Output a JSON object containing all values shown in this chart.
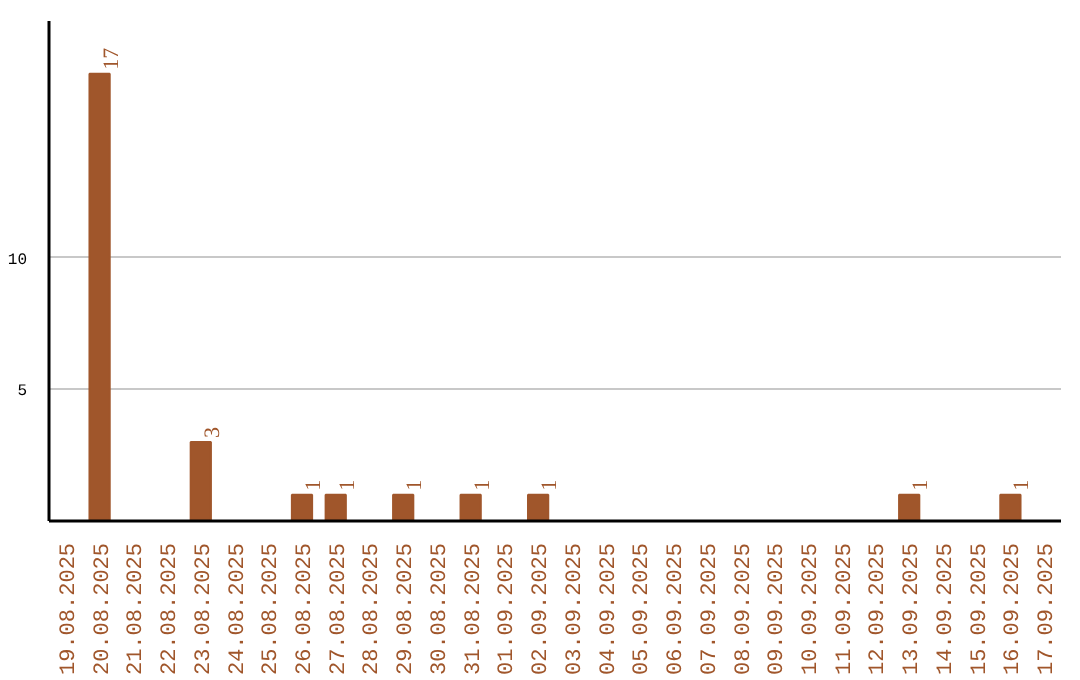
{
  "chart_data": {
    "type": "bar",
    "categories": [
      "19.08.2025",
      "20.08.2025",
      "21.08.2025",
      "22.08.2025",
      "23.08.2025",
      "24.08.2025",
      "25.08.2025",
      "26.08.2025",
      "27.08.2025",
      "28.08.2025",
      "29.08.2025",
      "30.08.2025",
      "31.08.2025",
      "01.09.2025",
      "02.09.2025",
      "03.09.2025",
      "04.09.2025",
      "05.09.2025",
      "06.09.2025",
      "07.09.2025",
      "08.09.2025",
      "09.09.2025",
      "10.09.2025",
      "11.09.2025",
      "12.09.2025",
      "13.09.2025",
      "14.09.2025",
      "15.09.2025",
      "16.09.2025",
      "17.09.2025"
    ],
    "values": [
      0,
      17,
      0,
      0,
      3,
      0,
      0,
      1,
      1,
      0,
      1,
      0,
      1,
      0,
      1,
      0,
      0,
      0,
      0,
      0,
      0,
      0,
      0,
      0,
      0,
      1,
      0,
      0,
      1,
      0
    ],
    "value_labels": [
      null,
      "17",
      null,
      null,
      "3",
      null,
      null,
      "1",
      "1",
      null,
      "1",
      null,
      "1",
      null,
      "1",
      null,
      null,
      null,
      null,
      null,
      null,
      null,
      null,
      null,
      null,
      "1",
      null,
      null,
      "1",
      null
    ],
    "color": "#a0562b",
    "ylim": [
      0,
      19
    ],
    "yticks": [
      5,
      10
    ],
    "grid": "y"
  }
}
